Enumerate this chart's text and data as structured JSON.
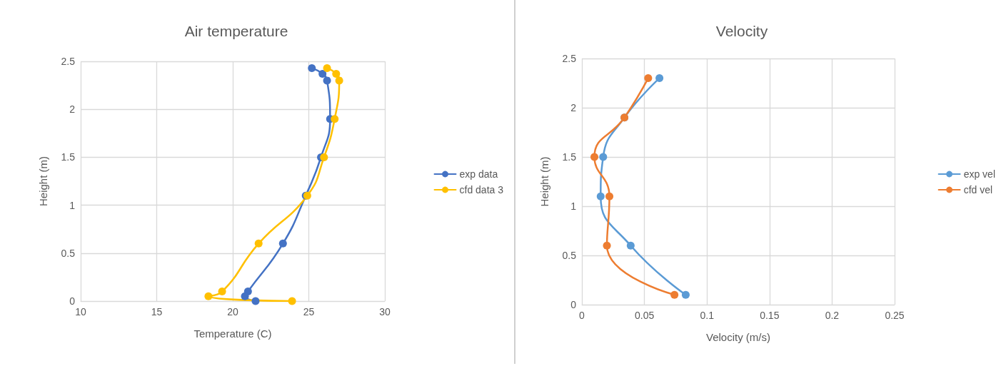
{
  "chart_data": [
    {
      "type": "line",
      "title": "Air temperature",
      "xlabel": "Temperature (C)",
      "ylabel": "Height (m)",
      "xlim": [
        10,
        30
      ],
      "xticks": [
        10,
        15,
        20,
        25,
        30
      ],
      "ylim": [
        0,
        2.5
      ],
      "yticks": [
        0,
        0.5,
        1,
        1.5,
        2,
        2.5
      ],
      "grid": true,
      "legend": "right",
      "marker": "circle",
      "line_style": "solid",
      "series": [
        {
          "name": "exp data",
          "color": "#4472c4",
          "x": [
            25.2,
            25.9,
            26.2,
            26.4,
            25.8,
            24.8,
            23.3,
            21.0,
            20.8,
            21.5
          ],
          "values": [
            2.43,
            2.37,
            2.3,
            1.9,
            1.5,
            1.1,
            0.6,
            0.1,
            0.05,
            0
          ]
        },
        {
          "name": "cfd data 3",
          "color": "#ffc000",
          "x": [
            26.2,
            26.8,
            27.0,
            26.7,
            26.0,
            24.9,
            21.7,
            19.3,
            18.4,
            23.9
          ],
          "values": [
            2.43,
            2.37,
            2.3,
            1.9,
            1.5,
            1.1,
            0.6,
            0.1,
            0.05,
            0
          ]
        }
      ]
    },
    {
      "type": "line",
      "title": "Velocity",
      "xlabel": "Velocity (m/s)",
      "ylabel": "Height (m)",
      "xlim": [
        0,
        0.25
      ],
      "xticks": [
        0,
        0.05,
        0.1,
        0.15,
        0.2,
        0.25
      ],
      "ylim": [
        0,
        2.5
      ],
      "yticks": [
        0,
        0.5,
        1,
        1.5,
        2,
        2.5
      ],
      "grid": true,
      "legend": "right",
      "marker": "circle",
      "line_style": "solid",
      "series": [
        {
          "name": "exp vel",
          "color": "#5b9bd5",
          "x": [
            0.062,
            0.034,
            0.017,
            0.015,
            0.039,
            0.083
          ],
          "values": [
            2.3,
            1.9,
            1.5,
            1.1,
            0.6,
            0.1
          ]
        },
        {
          "name": "cfd vel",
          "color": "#ed7d31",
          "x": [
            0.053,
            0.034,
            0.01,
            0.022,
            0.02,
            0.074
          ],
          "values": [
            2.3,
            1.9,
            1.5,
            1.1,
            0.6,
            0.1
          ]
        }
      ]
    }
  ]
}
